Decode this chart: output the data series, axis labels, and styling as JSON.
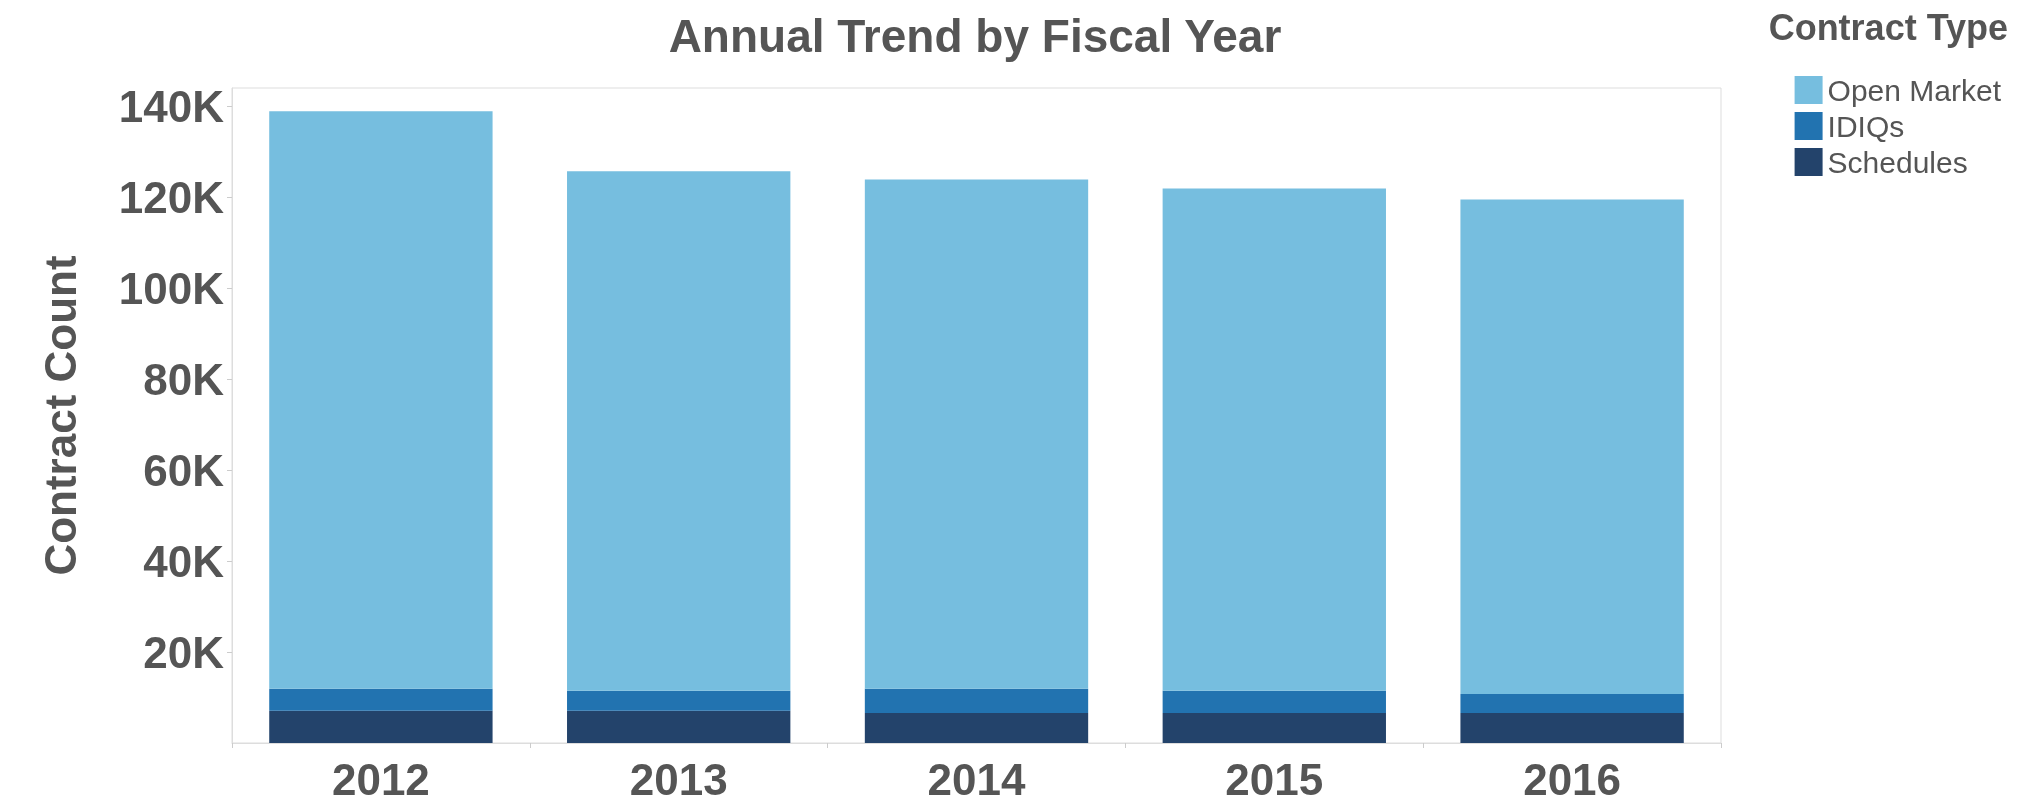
{
  "chart_data": {
    "type": "bar",
    "title": "Annual Trend by Fiscal Year",
    "ylabel": "Contract Count",
    "legend_title": "Contract Type",
    "categories": [
      "2012",
      "2013",
      "2014",
      "2015",
      "2016"
    ],
    "stacked": true,
    "series": [
      {
        "name": "Schedules",
        "color": "#23436b",
        "values": [
          7100,
          7100,
          6600,
          6600,
          6600
        ]
      },
      {
        "name": "IDIQs",
        "color": "#2273b0",
        "values": [
          4800,
          4400,
          5300,
          4900,
          4200
        ]
      },
      {
        "name": "Open Market",
        "color": "#76bedf",
        "values": [
          127000,
          114200,
          112000,
          110400,
          108700
        ]
      }
    ],
    "ylim": [
      0,
      144000
    ],
    "yticks": [
      {
        "value": 20000,
        "label": "20K"
      },
      {
        "value": 40000,
        "label": "40K"
      },
      {
        "value": 60000,
        "label": "60K"
      },
      {
        "value": 80000,
        "label": "80K"
      },
      {
        "value": 100000,
        "label": "100K"
      },
      {
        "value": 120000,
        "label": "120K"
      },
      {
        "value": 140000,
        "label": "140K"
      }
    ],
    "grid": false,
    "legend": "top right"
  }
}
